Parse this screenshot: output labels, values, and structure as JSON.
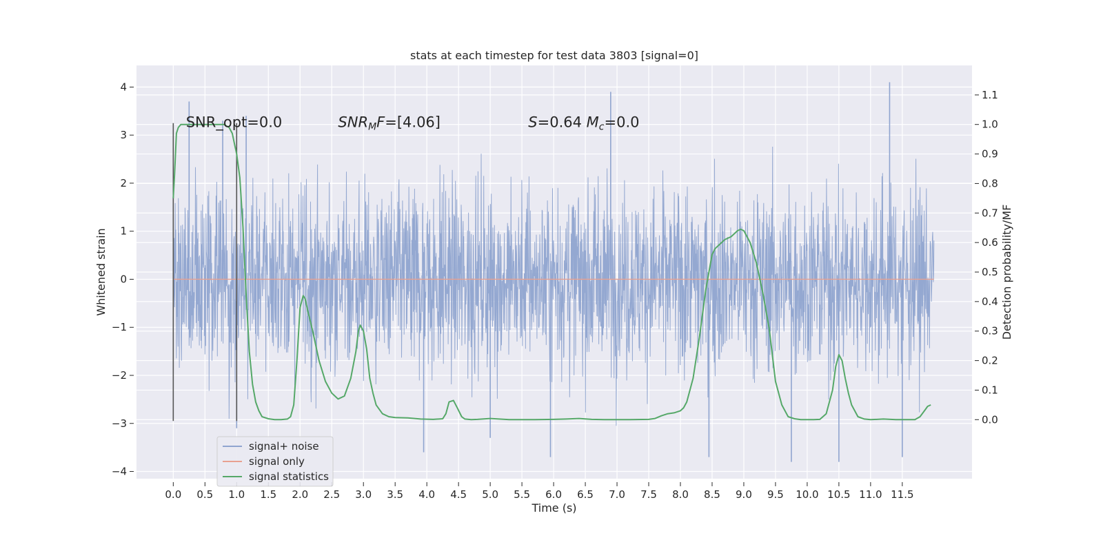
{
  "chart_data": {
    "type": "line",
    "title": "stats at each timestep for test data 3803 [signal=0]",
    "xlabel": "Time (s)",
    "ylabel": "Whitened strain",
    "ylabel_right": "Detection probability/MF",
    "xlim": [
      -0.58,
      12.6
    ],
    "ylim": [
      -4.15,
      4.45
    ],
    "ylim_right": [
      -0.2,
      1.2
    ],
    "x_ticks": [
      0.0,
      0.5,
      1.0,
      1.5,
      2.0,
      2.5,
      3.0,
      3.5,
      4.0,
      4.5,
      5.0,
      5.5,
      6.0,
      6.5,
      7.0,
      7.5,
      8.0,
      8.5,
      9.0,
      9.5,
      10.0,
      10.5,
      11.0,
      11.5
    ],
    "x_tick_labels": [
      "0.0",
      "0.5",
      "1.0",
      "1.5",
      "2.0",
      "2.5",
      "3.0",
      "3.5",
      "4.0",
      "4.5",
      "5.0",
      "5.5",
      "6.0",
      "6.5",
      "7.0",
      "7.5",
      "8.0",
      "8.5",
      "9.0",
      "9.5",
      "10.0",
      "10.5",
      "11.0",
      "11.5"
    ],
    "y_ticks": [
      4,
      3,
      2,
      1,
      0,
      -1,
      -2,
      -3,
      -4
    ],
    "y_tick_labels": [
      "4",
      "3",
      "2",
      "1",
      "0",
      "−1",
      "−2",
      "−3",
      "−4"
    ],
    "y_right_ticks": [
      1.1,
      1.0,
      0.9,
      0.8,
      0.7,
      0.6,
      0.5,
      0.4,
      0.3,
      0.2,
      0.1,
      0.0
    ],
    "y_right_tick_labels": [
      "1.1",
      "1.0",
      "0.9",
      "0.8",
      "0.7",
      "0.6",
      "0.5",
      "0.4",
      "0.3",
      "0.2",
      "0.1",
      "0.0"
    ],
    "grid": true,
    "legend_position": "lower-left",
    "series": [
      {
        "name": "signal+ noise",
        "color": "#8fa4cf",
        "axis": "left",
        "x_range": [
          0.0,
          12.0
        ],
        "typical_envelope": [
          -1.8,
          1.8
        ],
        "peaks": [
          {
            "x": 0.25,
            "y": 3.7
          },
          {
            "x": 0.78,
            "y": 3.3
          },
          {
            "x": 1.0,
            "y": -3.1
          },
          {
            "x": 1.15,
            "y": 3.4
          },
          {
            "x": 3.95,
            "y": -3.6
          },
          {
            "x": 5.0,
            "y": -3.3
          },
          {
            "x": 5.95,
            "y": -3.7
          },
          {
            "x": 6.9,
            "y": 3.9
          },
          {
            "x": 8.45,
            "y": -3.7
          },
          {
            "x": 9.75,
            "y": -3.8
          },
          {
            "x": 10.5,
            "y": -3.8
          },
          {
            "x": 11.3,
            "y": 4.1
          },
          {
            "x": 11.5,
            "y": -3.7
          }
        ]
      },
      {
        "name": "signal only",
        "color": "#e8a090",
        "axis": "left",
        "x": [
          0.0,
          12.0
        ],
        "y": [
          0.0,
          0.0
        ]
      },
      {
        "name": "signal statistics",
        "color": "#55a868",
        "axis": "right",
        "x": [
          0.0,
          0.02,
          0.05,
          0.08,
          0.12,
          0.2,
          0.3,
          0.5,
          0.7,
          0.8,
          0.88,
          0.93,
          0.97,
          1.0,
          1.05,
          1.1,
          1.15,
          1.2,
          1.25,
          1.3,
          1.35,
          1.4,
          1.5,
          1.6,
          1.7,
          1.8,
          1.85,
          1.9,
          1.95,
          2.0,
          2.05,
          2.08,
          2.12,
          2.2,
          2.3,
          2.4,
          2.5,
          2.55,
          2.6,
          2.7,
          2.8,
          2.88,
          2.92,
          2.95,
          3.0,
          3.05,
          3.1,
          3.15,
          3.2,
          3.3,
          3.4,
          3.5,
          3.7,
          3.9,
          4.1,
          4.25,
          4.3,
          4.35,
          4.42,
          4.48,
          4.55,
          4.6,
          4.7,
          4.8,
          5.0,
          5.3,
          5.7,
          6.0,
          6.2,
          6.4,
          6.6,
          6.8,
          7.2,
          7.5,
          7.6,
          7.7,
          7.8,
          7.9,
          8.0,
          8.05,
          8.1,
          8.2,
          8.3,
          8.4,
          8.5,
          8.55,
          8.6,
          8.65,
          8.7,
          8.8,
          8.9,
          8.95,
          9.0,
          9.05,
          9.1,
          9.2,
          9.3,
          9.4,
          9.5,
          9.6,
          9.7,
          9.8,
          9.9,
          10.0,
          10.1,
          10.2,
          10.3,
          10.4,
          10.45,
          10.5,
          10.55,
          10.6,
          10.65,
          10.7,
          10.8,
          10.9,
          11.0,
          11.2,
          11.4,
          11.7,
          11.78,
          11.85,
          11.9,
          11.95
        ],
        "y": [
          0.75,
          0.83,
          0.97,
          0.99,
          1.0,
          1.0,
          1.0,
          1.0,
          1.0,
          1.0,
          0.99,
          0.97,
          0.93,
          0.9,
          0.82,
          0.65,
          0.42,
          0.23,
          0.12,
          0.06,
          0.03,
          0.01,
          0.003,
          0.0,
          0.0,
          0.002,
          0.01,
          0.05,
          0.2,
          0.38,
          0.42,
          0.41,
          0.37,
          0.3,
          0.2,
          0.13,
          0.09,
          0.08,
          0.07,
          0.08,
          0.14,
          0.23,
          0.3,
          0.32,
          0.3,
          0.24,
          0.14,
          0.09,
          0.05,
          0.02,
          0.01,
          0.007,
          0.006,
          0.002,
          0.001,
          0.003,
          0.02,
          0.06,
          0.065,
          0.04,
          0.01,
          0.002,
          0.0,
          0.001,
          0.004,
          0.0,
          0.0,
          0.001,
          0.002,
          0.004,
          0.001,
          0.0,
          0.0,
          0.001,
          0.004,
          0.013,
          0.02,
          0.023,
          0.03,
          0.04,
          0.06,
          0.14,
          0.28,
          0.44,
          0.56,
          0.58,
          0.59,
          0.6,
          0.61,
          0.62,
          0.64,
          0.645,
          0.64,
          0.62,
          0.6,
          0.53,
          0.43,
          0.31,
          0.13,
          0.05,
          0.01,
          0.003,
          0.0,
          0.0,
          0.0,
          0.001,
          0.02,
          0.1,
          0.18,
          0.22,
          0.2,
          0.14,
          0.09,
          0.05,
          0.01,
          0.002,
          0.0,
          0.002,
          0.0,
          0.0,
          0.01,
          0.03,
          0.045,
          0.05
        ]
      }
    ],
    "vlines": [
      {
        "x": 0.0,
        "y_range": [
          -2.95,
          3.25
        ]
      },
      {
        "x": 1.0,
        "y_range": [
          -2.95,
          3.25
        ]
      }
    ],
    "annotations": [
      {
        "id": "snr_opt",
        "x": 0.2,
        "y": 3.25,
        "text": "SNR_opt=0.0"
      },
      {
        "id": "snr_mf",
        "x": 2.6,
        "y": 3.25,
        "text": "SNR_MF=[4.06]"
      },
      {
        "id": "s_mc",
        "x": 5.6,
        "y": 3.25,
        "text": "S=0.64  M_c=0.0"
      }
    ],
    "colors": {
      "plot_background": "#eaeaf2",
      "grid": "#ffffff",
      "text": "#262626",
      "vline": "#555555"
    }
  }
}
